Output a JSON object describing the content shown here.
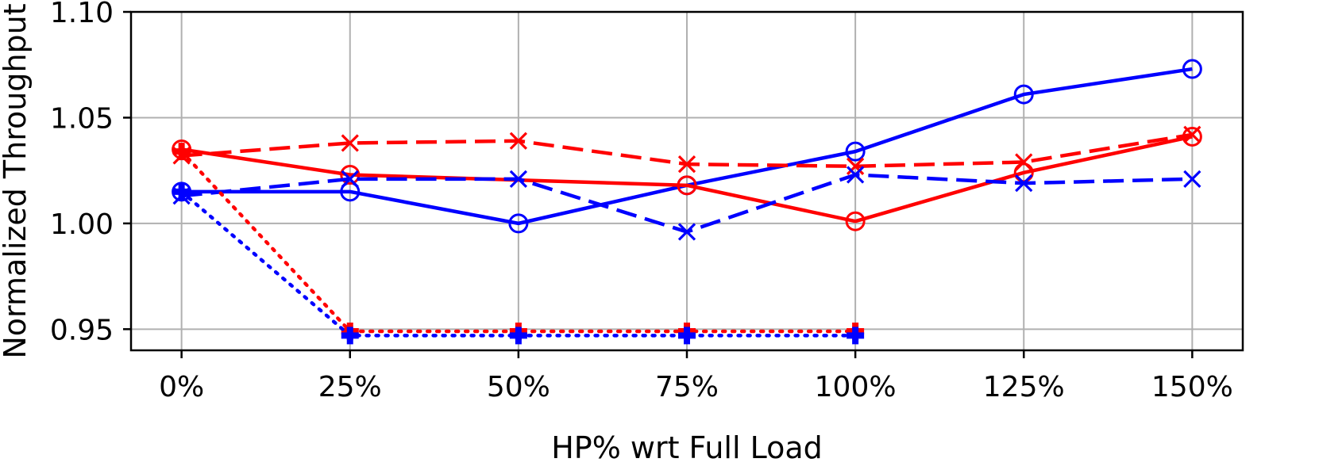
{
  "chart_data": {
    "type": "line",
    "xlabel": "HP% wrt Full Load",
    "ylabel": "Normalized Throughput",
    "x_ticks": [
      "0%",
      "25%",
      "50%",
      "75%",
      "100%",
      "125%",
      "150%"
    ],
    "y_ticks": [
      "0.95",
      "1.00",
      "1.05",
      "1.10"
    ],
    "x": [
      0,
      25,
      50,
      75,
      100,
      125,
      150
    ],
    "xlim": [
      -7.5,
      157.5
    ],
    "ylim": [
      0.94,
      1.1
    ],
    "grid": true,
    "series": [
      {
        "color": "#0000ff",
        "linestyle": "solid",
        "marker": "circle",
        "values": [
          1.015,
          1.015,
          1.0,
          1.018,
          1.034,
          1.061,
          1.073
        ]
      },
      {
        "color": "#ff0000",
        "linestyle": "solid",
        "marker": "circle",
        "values": [
          1.035,
          1.023,
          null,
          1.018,
          1.001,
          1.024,
          1.041
        ]
      },
      {
        "color": "#ff0000",
        "linestyle": "dashed",
        "marker": "x",
        "values": [
          1.032,
          1.038,
          1.039,
          1.028,
          1.027,
          1.029,
          1.042
        ]
      },
      {
        "color": "#0000ff",
        "linestyle": "dashed",
        "marker": "x",
        "values": [
          1.013,
          1.021,
          1.021,
          0.996,
          1.023,
          1.019,
          1.021
        ]
      },
      {
        "color": "#ff0000",
        "linestyle": "dotted",
        "marker": "plus",
        "values": [
          1.034,
          0.949,
          0.949,
          0.949,
          0.949,
          null,
          null
        ]
      },
      {
        "color": "#0000ff",
        "linestyle": "dotted",
        "marker": "plus",
        "values": [
          1.015,
          0.947,
          0.947,
          0.947,
          0.947,
          null,
          null
        ]
      }
    ]
  }
}
